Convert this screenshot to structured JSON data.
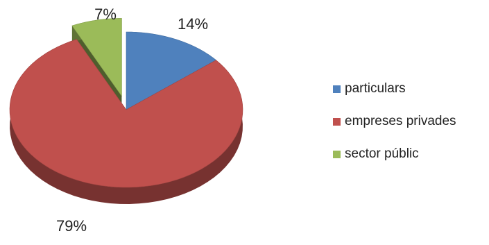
{
  "chart_data": {
    "type": "pie",
    "title": "",
    "slices": [
      {
        "name": "particulars",
        "value": 14,
        "label": "14%",
        "color": "#4F81BD"
      },
      {
        "name": "empreses privades",
        "value": 79,
        "label": "79%",
        "color": "#C0504D"
      },
      {
        "name": "sector públic",
        "value": 7,
        "label": "7%",
        "color": "#9BBB59"
      }
    ],
    "exploded": "sector públic",
    "style": "3d",
    "legend_position": "right"
  }
}
